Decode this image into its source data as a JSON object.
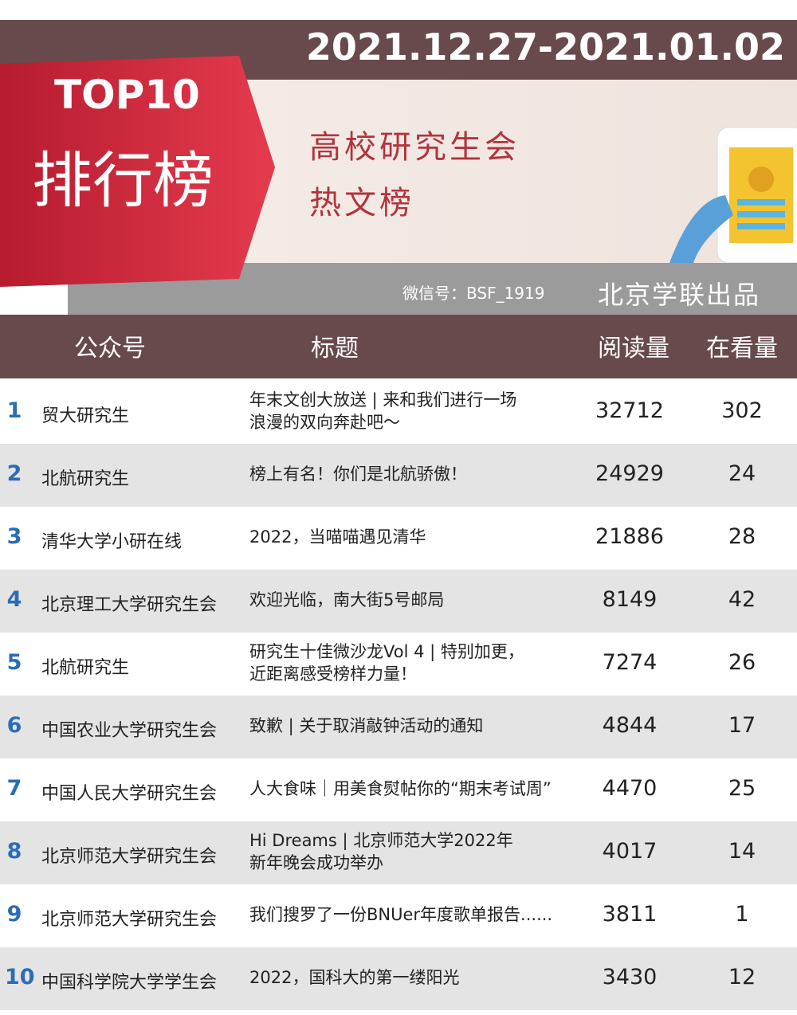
{
  "header": {
    "date": "2021.12.27-2021.01.02",
    "top": "TOP10",
    "rank_title": "排行榜",
    "subtitle_1": "高校研究生会",
    "subtitle_2": "热文榜",
    "wechat": "微信号：BSF_1919",
    "publisher": "北京学联出品"
  },
  "table": {
    "columns": [
      "公众号",
      "标题",
      "阅读量",
      "在看量"
    ],
    "rows": [
      {
        "rank": 1,
        "account": "贸大研究生",
        "title": [
          "年末文创大放送 | 来和我们进行一场",
          "浪漫的双向奔赴吧～"
        ],
        "reads": 32712,
        "views": 302
      },
      {
        "rank": 2,
        "account": "北航研究生",
        "title": [
          "榜上有名！你们是北航骄傲！"
        ],
        "reads": 24929,
        "views": 24
      },
      {
        "rank": 3,
        "account": "清华大学小研在线",
        "title": [
          "2022，当喵喵遇见清华"
        ],
        "reads": 21886,
        "views": 28
      },
      {
        "rank": 4,
        "account": "北京理工大学研究生会",
        "title": [
          "欢迎光临，南大街5号邮局"
        ],
        "reads": 8149,
        "views": 42
      },
      {
        "rank": 5,
        "account": "北航研究生",
        "title": [
          "研究生十佳微沙龙Vol 4 | 特别加更，",
          "近距离感受榜样力量！"
        ],
        "reads": 7274,
        "views": 26
      },
      {
        "rank": 6,
        "account": "中国农业大学研究生会",
        "title": [
          "致歉 | 关于取消敲钟活动的通知"
        ],
        "reads": 4844,
        "views": 17
      },
      {
        "rank": 7,
        "account": "中国人民大学研究生会",
        "title": [
          "人大食味｜用美食熨帖你的“期末考试周”"
        ],
        "reads": 4470,
        "views": 25
      },
      {
        "rank": 8,
        "account": "北京师范大学研究生会",
        "title": [
          "Hi Dreams | 北京师范大学2022年",
          "新年晚会成功举办"
        ],
        "reads": 4017,
        "views": 14
      },
      {
        "rank": 9,
        "account": "北京师范大学研究生会",
        "title": [
          "我们搜罗了一份BNUer年度歌单报告......"
        ],
        "reads": 3811,
        "views": 1
      },
      {
        "rank": 10,
        "account": "中国科学院大学学生会",
        "title": [
          "2022，国科大的第一缕阳光"
        ],
        "reads": 3430,
        "views": 12
      }
    ]
  }
}
